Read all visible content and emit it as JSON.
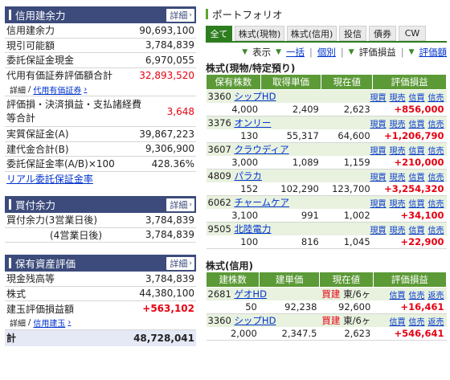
{
  "left": {
    "margin": {
      "title": "信用建余力",
      "detail_label": "詳細",
      "rows": [
        {
          "label": "信用建余力",
          "value": "90,693,100"
        },
        {
          "label": "現引可能額",
          "value": "3,784,839"
        },
        {
          "label": "委託保証金現金",
          "value": "6,970,055"
        },
        {
          "label": "代用有価証券評価額合計",
          "value": "32,893,520",
          "red": true
        }
      ],
      "sub_link_prefix": "詳細",
      "sub_link": "代用有価証券",
      "rows2": [
        {
          "label": "評価損・決済損益・支払諸経費等合計",
          "value": "3,648",
          "red": true
        },
        {
          "label": "実質保証金(A)",
          "value": "39,867,223"
        },
        {
          "label": "建代金合計(B)",
          "value": "9,306,900"
        },
        {
          "label": "委託保証金率(A/B)×100",
          "value": "428.36%"
        }
      ],
      "realtime_link": "リアル委託保証金率"
    },
    "buying": {
      "title": "買付余力",
      "detail_label": "詳細",
      "rows": [
        {
          "label": "買付余力(3営業日後)",
          "value": "3,784,839"
        },
        {
          "label": "(4営業日後)",
          "value": "3,784,839"
        }
      ]
    },
    "assets": {
      "title": "保有資産評価",
      "detail_label": "詳細",
      "rows": [
        {
          "label": "現金残高等",
          "value": "3,784,839"
        },
        {
          "label": "株式",
          "value": "44,380,100"
        },
        {
          "label": "建玉評価損益額",
          "value": "+563,102",
          "red": true
        }
      ],
      "sub_link_prefix": "詳細",
      "sub_link": "信用建玉",
      "total_label": "計",
      "total_value": "48,728,041"
    }
  },
  "right": {
    "title": "ポートフォリオ",
    "tabs": [
      "全て",
      "株式(現物)",
      "株式(信用)",
      "投信",
      "債券",
      "CW"
    ],
    "toolbar": {
      "display": "表示",
      "bulk": "一括",
      "individual": "個別",
      "pnl": "評価損益",
      "pnl_rate": "評価額"
    },
    "cash": {
      "section_title": "株式(現物/特定預り)",
      "headers": [
        "保有株数",
        "取得単価",
        "現在値",
        "評価損益"
      ],
      "links": [
        "現買",
        "現売",
        "信買",
        "信売"
      ],
      "rows": [
        {
          "code": "3360",
          "name": "シップHD",
          "qty": "4,000",
          "cost": "2,409",
          "price": "2,623",
          "pnl": "+856,000"
        },
        {
          "code": "3376",
          "name": "オンリー",
          "qty": "130",
          "cost": "55,317",
          "price": "64,600",
          "pnl": "+1,206,790"
        },
        {
          "code": "3607",
          "name": "クラウディア",
          "qty": "3,000",
          "cost": "1,089",
          "price": "1,159",
          "pnl": "+210,000"
        },
        {
          "code": "4809",
          "name": "パラカ",
          "qty": "152",
          "cost": "102,290",
          "price": "123,700",
          "pnl": "+3,254,320"
        },
        {
          "code": "6062",
          "name": "チャームケア",
          "qty": "3,100",
          "cost": "991",
          "price": "1,002",
          "pnl": "+34,100"
        },
        {
          "code": "9505",
          "name": "北陸電力",
          "qty": "100",
          "cost": "816",
          "price": "1,045",
          "pnl": "+22,900"
        }
      ]
    },
    "margin": {
      "section_title": "株式(信用)",
      "headers": [
        "建株数",
        "建単価",
        "現在値",
        "評価損益"
      ],
      "links": [
        "信買",
        "信売",
        "返売"
      ],
      "rows": [
        {
          "code": "2681",
          "name": "ゲオHD",
          "side": "買建",
          "market": "東/6ヶ",
          "qty": "50",
          "cost": "92,238",
          "price": "92,600",
          "pnl": "+16,461"
        },
        {
          "code": "3360",
          "name": "シップHD",
          "side": "買建",
          "market": "東/6ヶ",
          "qty": "2,000",
          "cost": "2,347.5",
          "price": "2,623",
          "pnl": "+546,641"
        }
      ]
    }
  }
}
